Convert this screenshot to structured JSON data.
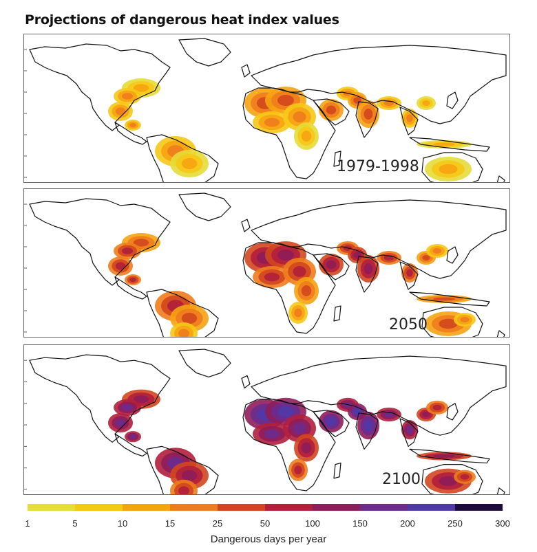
{
  "title": "Projections of dangerous heat index values",
  "panels": [
    {
      "label": "1979-1998",
      "intensity": 1
    },
    {
      "label": "2050",
      "intensity": 2
    },
    {
      "label": "2100",
      "intensity": 3
    }
  ],
  "legend": {
    "title": "Dangerous days per year",
    "ticks": [
      "1",
      "5",
      "10",
      "15",
      "25",
      "50",
      "100",
      "150",
      "200",
      "250",
      "300"
    ],
    "colors": [
      "#e6dc3a",
      "#f6c816",
      "#f6a312",
      "#ee7c1c",
      "#d2461e",
      "#b11f3c",
      "#8e1d5a",
      "#6c2b8e",
      "#4f38a8",
      "#3a3aa6",
      "#1e0b3c"
    ]
  }
}
